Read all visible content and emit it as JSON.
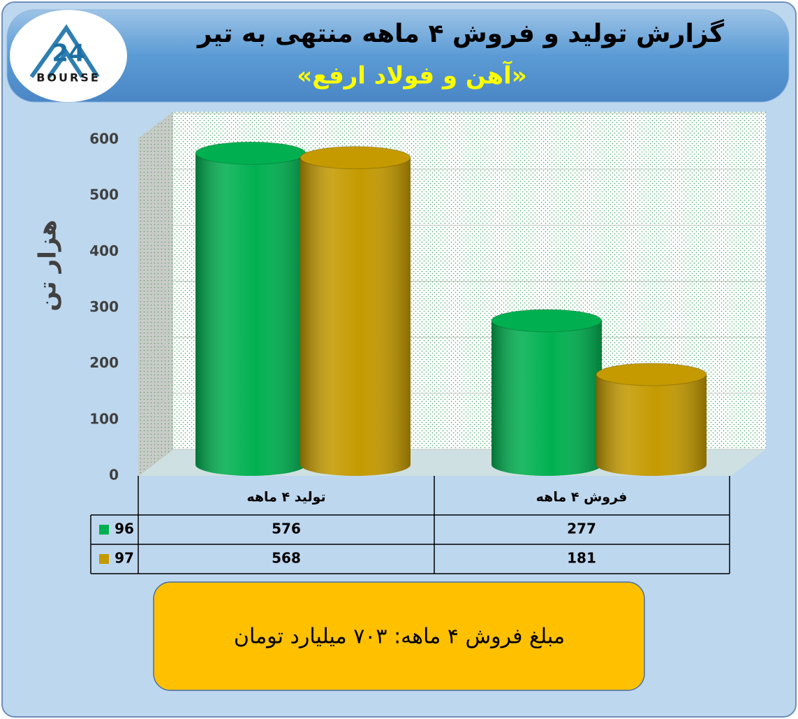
{
  "logo": {
    "number": "24",
    "name": "BOURSE"
  },
  "chart_data": {
    "type": "bar",
    "title": "گزارش تولید و فروش ۴ ماهه منتهی به تیر",
    "subtitle": "«آهن و فولاد ارفع»",
    "y_label": "هزار تن",
    "categories": [
      "تولید ۴ ماهه",
      "فروش ۴ ماهه"
    ],
    "series": [
      {
        "name": "96",
        "color": "#00b050",
        "values": [
          576,
          277
        ]
      },
      {
        "name": "97",
        "color": "#c49a00",
        "values": [
          568,
          181
        ]
      }
    ],
    "ylim": [
      0,
      600
    ],
    "yticks": [
      0,
      100,
      200,
      300,
      400,
      500,
      600
    ],
    "grid": true,
    "note": "مبلغ فروش ۴ ماهه: ۷۰۳ میلیارد تومان"
  }
}
